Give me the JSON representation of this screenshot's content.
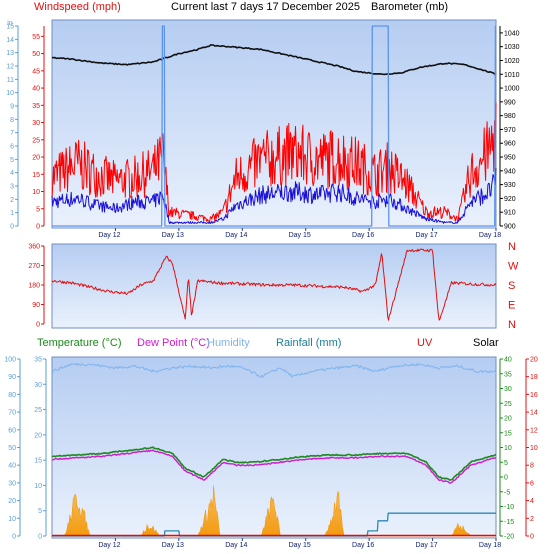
{
  "header": {
    "windspeed_label": "Windspeed (mph)",
    "title": "Current last 7 days 17 December 2025",
    "barometer_label": "Barometer (mb)"
  },
  "legend": {
    "temperature": "Temperature (°C)",
    "dew_point": "Dew Point (°C)",
    "humidity": "Humidity",
    "rainfall": "Rainfall (mm)",
    "uv": "UV",
    "solar": "Solar"
  },
  "colors": {
    "background": "#ffffff",
    "plot_top": "#b5cdf2",
    "plot_bottom": "#eaf1fc",
    "gust": "#ff0000",
    "wind": "#1a10d8",
    "barometer": "#111111",
    "rainfall_plot1": "#5b94ee",
    "direction": "#e01010",
    "temperature": "#1c8a1c",
    "dew_point": "#d01ad0",
    "humidity": "#7fb3ee",
    "rainfall_plot3": "#2a8ab0",
    "solar": "#f29a10",
    "uv": "#ff0000",
    "tick_blue": "#5a9fd4",
    "tick_green": "#1c8a1c"
  },
  "chart_data": [
    {
      "type": "line",
      "title": "Current last 7 days 17 December 2025",
      "x_ticks": [
        "Day 12",
        "Day 13",
        "Day 14",
        "Day 15",
        "Day 16",
        "Day 17",
        "Day 18"
      ],
      "axes": {
        "rainfall_left": {
          "label": "",
          "range": [
            0,
            15
          ],
          "ticks": [
            "0",
            "1",
            "2",
            "3",
            "4",
            "5",
            "6",
            "7",
            "8",
            "9",
            "10",
            "11",
            "12",
            "13",
            "14",
            "15"
          ],
          "top_label": "in"
        },
        "windspeed_left": {
          "label": "Windspeed (mph)",
          "range": [
            0,
            58
          ],
          "ticks": [
            "0",
            "5",
            "10",
            "15",
            "20",
            "25",
            "30",
            "35",
            "40",
            "45",
            "50",
            "55"
          ]
        },
        "barometer_right": {
          "label": "Barometer (mb)",
          "range": [
            900,
            1045
          ],
          "ticks": [
            "900",
            "910",
            "920",
            "930",
            "940",
            "950",
            "960",
            "970",
            "980",
            "990",
            "1000",
            "1010",
            "1020",
            "1030",
            "1040"
          ]
        }
      },
      "series": [
        {
          "name": "Gust (mph)",
          "x": [
            11.0,
            11.4,
            11.7,
            12.0,
            12.3,
            12.6,
            12.75,
            12.85,
            13.2,
            13.5,
            13.7,
            13.9,
            14.3,
            14.8,
            15.2,
            15.5,
            15.8,
            16.1,
            16.3,
            16.6,
            16.9,
            17.2,
            17.4,
            17.6,
            17.9,
            18.0
          ],
          "y": [
            14,
            18,
            15,
            13,
            14,
            16,
            20,
            4,
            3,
            2,
            4,
            14,
            19,
            21,
            19,
            20,
            18,
            15,
            17,
            12,
            4,
            4,
            2,
            15,
            22,
            28
          ]
        },
        {
          "name": "Average windspeed (mph)",
          "x": [
            11.0,
            11.4,
            11.7,
            12.0,
            12.3,
            12.6,
            12.75,
            12.85,
            13.2,
            13.5,
            13.7,
            13.9,
            14.3,
            14.8,
            15.2,
            15.5,
            15.8,
            16.1,
            16.3,
            16.6,
            16.9,
            17.2,
            17.4,
            17.6,
            17.9,
            18.0
          ],
          "y": [
            7,
            8,
            6,
            5,
            7,
            7,
            9,
            1,
            1,
            1,
            2,
            6,
            9,
            10,
            9,
            10,
            8,
            7,
            8,
            5,
            2,
            1,
            1,
            7,
            10,
            13
          ]
        },
        {
          "name": "Barometer (mb)",
          "x": [
            11.0,
            11.3,
            11.8,
            12.2,
            12.6,
            13.0,
            13.3,
            13.5,
            13.8,
            14.3,
            14.8,
            15.2,
            15.5,
            15.8,
            16.2,
            16.5,
            16.8,
            17.2,
            17.5,
            17.8,
            18.0
          ],
          "y": [
            1022,
            1021,
            1018,
            1017,
            1019,
            1025,
            1028,
            1031,
            1030,
            1028,
            1023,
            1019,
            1016,
            1012,
            1010,
            1011,
            1015,
            1018,
            1017,
            1013,
            1010
          ]
        },
        {
          "name": "Rainfall (in)",
          "x": [
            11.0,
            12.73,
            12.74,
            12.77,
            12.78,
            16.04,
            16.05,
            16.3,
            16.31,
            17.98,
            17.99,
            18.0
          ],
          "y": [
            0,
            0,
            15,
            15,
            0,
            0,
            15,
            15,
            0,
            0,
            15,
            15
          ]
        }
      ]
    },
    {
      "type": "scatter",
      "x_ticks": [],
      "axes": {
        "left": {
          "range": [
            0,
            360
          ],
          "ticks": [
            "0",
            "90",
            "180",
            "270",
            "360"
          ]
        },
        "right_cardinals": [
          "N",
          "W",
          "S",
          "E",
          "N"
        ]
      },
      "series": [
        {
          "name": "Wind direction (deg)",
          "x": [
            11.0,
            11.3,
            11.6,
            11.9,
            12.2,
            12.4,
            12.6,
            12.8,
            12.9,
            13.1,
            13.15,
            13.2,
            13.3,
            13.6,
            14.0,
            14.4,
            14.8,
            15.2,
            15.6,
            15.9,
            16.1,
            16.2,
            16.3,
            16.6,
            16.8,
            17.0,
            17.1,
            17.3,
            17.6,
            18.0
          ],
          "y": [
            200,
            190,
            170,
            150,
            140,
            180,
            200,
            310,
            280,
            20,
            220,
            40,
            200,
            190,
            185,
            180,
            180,
            175,
            170,
            150,
            180,
            330,
            15,
            340,
            340,
            340,
            10,
            190,
            185,
            180
          ]
        }
      ]
    },
    {
      "type": "line",
      "x_ticks": [
        "Day 12",
        "Day 13",
        "Day 14",
        "Day 15",
        "Day 16",
        "Day 17",
        "Day 18"
      ],
      "axes": {
        "humidity_left": {
          "range": [
            0,
            100
          ],
          "ticks": [
            "0",
            "10",
            "20",
            "30",
            "40",
            "50",
            "60",
            "70",
            "80",
            "90",
            "100"
          ]
        },
        "temperature_left": {
          "range": [
            0,
            35
          ],
          "ticks": [
            "0",
            "5",
            "10",
            "15",
            "20",
            "25",
            "30",
            "35"
          ]
        },
        "temperature_green_right": {
          "range": [
            -20,
            40
          ],
          "ticks": [
            "-20",
            "-15",
            "-10",
            "-5",
            "0",
            "5",
            "10",
            "15",
            "20",
            "25",
            "30",
            "35",
            "40"
          ]
        },
        "uv_right": {
          "range": [
            0,
            20
          ],
          "ticks": [
            "0",
            "2",
            "4",
            "6",
            "8",
            "10",
            "12",
            "14",
            "16",
            "18",
            "20"
          ]
        }
      },
      "series": [
        {
          "name": "Temperature (°C)",
          "x": [
            11.0,
            11.4,
            11.8,
            12.2,
            12.6,
            12.9,
            13.1,
            13.4,
            13.7,
            13.9,
            14.2,
            14.6,
            15.0,
            15.4,
            15.8,
            16.2,
            16.6,
            16.9,
            17.1,
            17.3,
            17.6,
            17.9,
            18.0
          ],
          "y": [
            7,
            7.5,
            8,
            9,
            10,
            8,
            3,
            0,
            6,
            5,
            5,
            6,
            7,
            7.5,
            7.5,
            8,
            8,
            5,
            0,
            -1,
            5,
            7,
            7.5
          ]
        },
        {
          "name": "Dew Point (°C)",
          "x": [
            11.0,
            11.4,
            11.8,
            12.2,
            12.6,
            12.9,
            13.1,
            13.4,
            13.7,
            13.9,
            14.2,
            14.6,
            15.0,
            15.4,
            15.8,
            16.2,
            16.6,
            16.9,
            17.1,
            17.3,
            17.6,
            17.9,
            18.0
          ],
          "y": [
            6,
            6.5,
            7,
            8,
            9,
            7,
            2,
            -1,
            5,
            4,
            4,
            5,
            6,
            6.5,
            6.5,
            7,
            7,
            4,
            -1,
            -2,
            4,
            6,
            6.5
          ]
        },
        {
          "name": "Humidity",
          "x": [
            11.0,
            11.3,
            11.6,
            12.0,
            12.3,
            12.6,
            12.9,
            13.2,
            13.5,
            13.8,
            14.0,
            14.3,
            14.6,
            14.8,
            15.1,
            15.5,
            15.8,
            16.1,
            16.4,
            16.8,
            17.1,
            17.4,
            17.7,
            18.0
          ],
          "y": [
            93,
            97,
            97,
            95,
            96,
            93,
            95,
            96,
            95,
            96,
            95,
            90,
            95,
            90,
            93,
            95,
            96,
            93,
            96,
            97,
            95,
            96,
            93,
            93
          ]
        },
        {
          "name": "Rainfall (mm)",
          "x": [
            11.0,
            12.77,
            12.78,
            13.0,
            13.01,
            15.97,
            15.98,
            16.13,
            16.14,
            16.29,
            16.3,
            18.0
          ],
          "y": [
            0,
            0,
            1,
            1,
            0,
            0,
            1,
            1,
            3,
            3,
            4.5,
            4.5
          ]
        },
        {
          "name": "Solar",
          "x": [
            11.0,
            11.2,
            11.3,
            11.4,
            11.6,
            12.4,
            12.5,
            12.6,
            12.7,
            13.3,
            13.4,
            13.55,
            13.65,
            14.3,
            14.4,
            14.5,
            14.6,
            15.3,
            15.4,
            15.5,
            15.6,
            17.3,
            17.4,
            17.5,
            17.6,
            18.0
          ],
          "y": [
            0,
            0,
            4,
            8,
            0,
            0,
            2,
            1.5,
            0,
            0,
            3,
            8,
            0,
            0,
            4,
            7,
            0,
            0,
            3,
            8,
            0,
            0,
            2,
            1.5,
            0,
            0
          ]
        },
        {
          "name": "UV",
          "x": [
            11.0,
            18.0
          ],
          "y": [
            0,
            0
          ]
        }
      ]
    }
  ]
}
